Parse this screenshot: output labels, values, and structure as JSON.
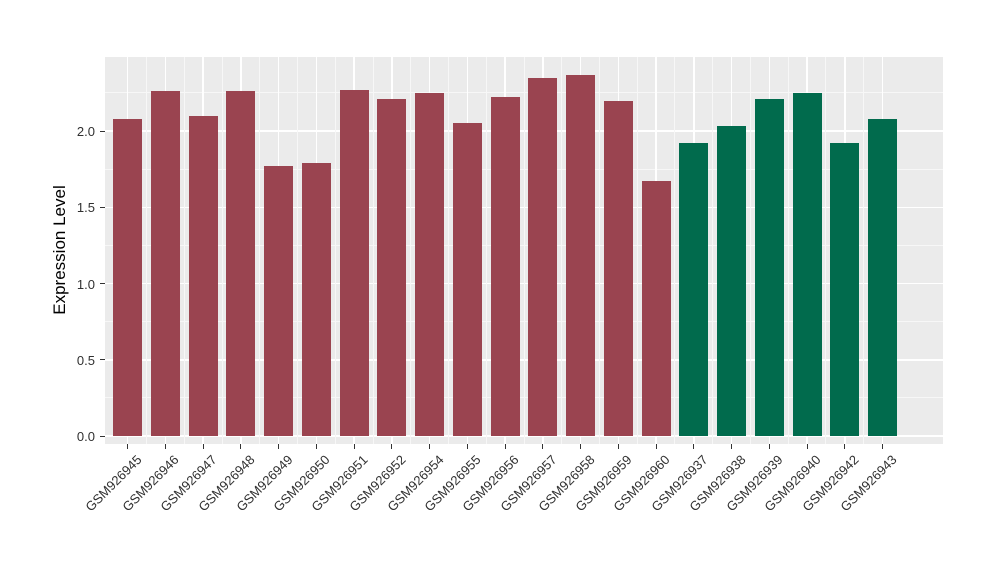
{
  "figure": {
    "background": "#FFFFFF",
    "panel_background": "#EBEBEB",
    "grid_major_color": "#FFFFFF",
    "grid_minor_color": "#F7F7F7",
    "tick_color": "#333333",
    "axis_text_color": "#303030",
    "axis_title_color": "#000000"
  },
  "chart_data": {
    "type": "bar",
    "title": "",
    "xlabel": "",
    "ylabel": "Expression Level",
    "ylim": [
      0,
      2.49
    ],
    "grid": "on",
    "legend": "none",
    "yticks": [
      "0.0",
      "0.5",
      "1.0",
      "1.5",
      "2.0"
    ],
    "ytick_values": [
      0.0,
      0.5,
      1.0,
      1.5,
      2.0
    ],
    "yminor_values": [
      0.25,
      0.75,
      1.25,
      1.75,
      2.25
    ],
    "categories": [
      "GSM926945",
      "GSM926946",
      "GSM926947",
      "GSM926948",
      "GSM926949",
      "GSM926950",
      "GSM926951",
      "GSM926952",
      "GSM926954",
      "GSM926955",
      "GSM926956",
      "GSM926957",
      "GSM926958",
      "GSM926959",
      "GSM926960",
      "GSM926937",
      "GSM926938",
      "GSM926939",
      "GSM926940",
      "GSM926942",
      "GSM926943"
    ],
    "values": [
      2.08,
      2.26,
      2.1,
      2.26,
      1.77,
      1.79,
      2.27,
      2.21,
      2.25,
      2.05,
      2.22,
      2.35,
      2.37,
      2.2,
      1.67,
      1.92,
      2.03,
      2.21,
      2.25,
      1.92,
      2.08
    ],
    "bar_colors": [
      "#9A4450",
      "#9A4450",
      "#9A4450",
      "#9A4450",
      "#9A4450",
      "#9A4450",
      "#9A4450",
      "#9A4450",
      "#9A4450",
      "#9A4450",
      "#9A4450",
      "#9A4450",
      "#9A4450",
      "#9A4450",
      "#9A4450",
      "#016B4D",
      "#016B4D",
      "#016B4D",
      "#016B4D",
      "#016B4D",
      "#016B4D"
    ],
    "color_legend": [
      {
        "color": "#9A4450",
        "bars": 15
      },
      {
        "color": "#016B4D",
        "bars": 6
      }
    ]
  }
}
